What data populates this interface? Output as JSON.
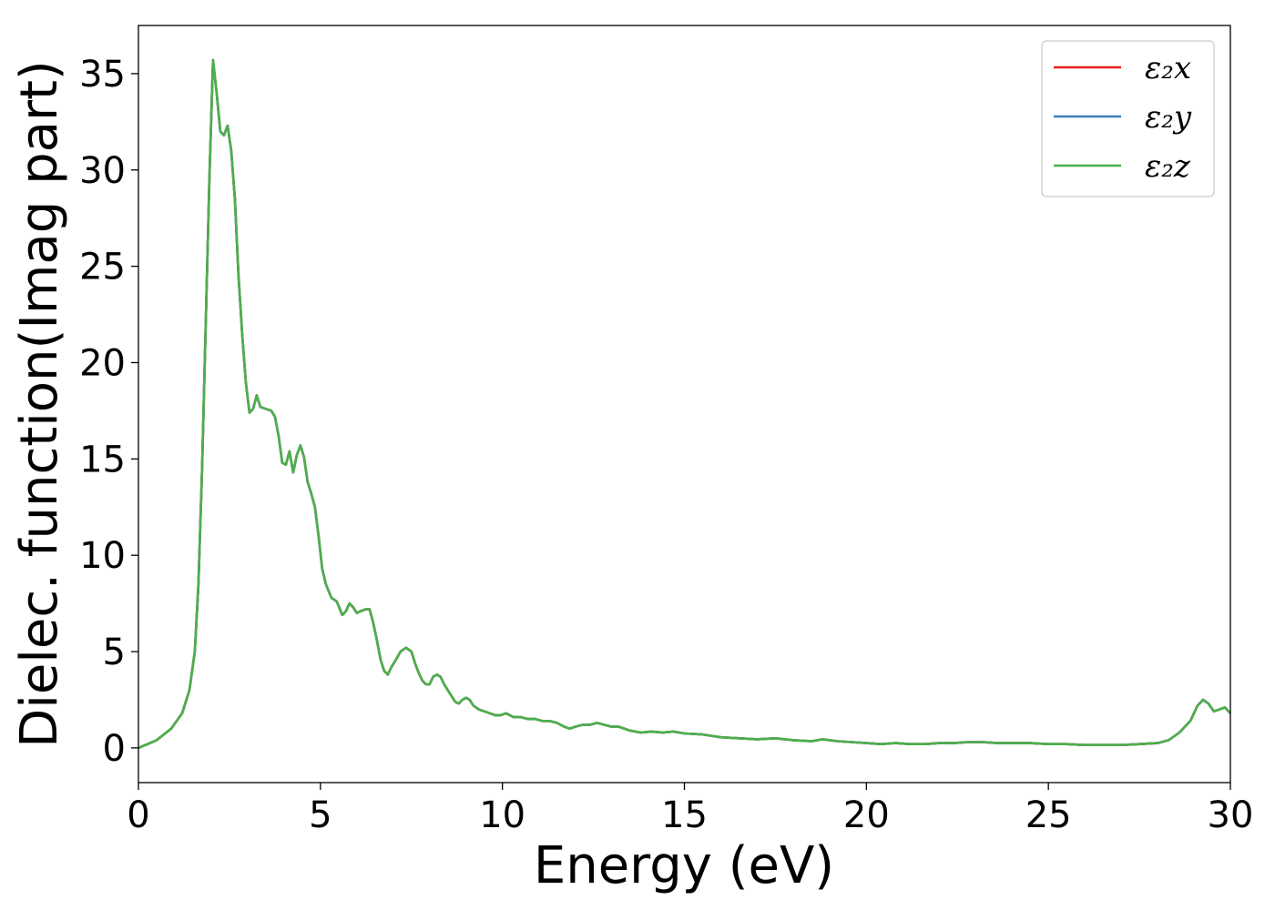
{
  "chart_data": {
    "type": "line",
    "xlabel": "Energy (eV)",
    "ylabel": "Dielec. function(Imag part)",
    "xlim": [
      0,
      30
    ],
    "ylim": [
      -1.8,
      37.5
    ],
    "xticks": [
      0,
      5,
      10,
      15,
      20,
      25,
      30
    ],
    "yticks": [
      0,
      5,
      10,
      15,
      20,
      25,
      30,
      35
    ],
    "legend_position": "top-right",
    "grid": false,
    "series": [
      {
        "name": "ε₂x",
        "color": "#e41a1c",
        "x": [
          0,
          0.5,
          0.9,
          1.2,
          1.4,
          1.55,
          1.65,
          1.75,
          1.85,
          1.95,
          2.05,
          2.15,
          2.25,
          2.35,
          2.45,
          2.55,
          2.65,
          2.75,
          2.85,
          2.95,
          3.05,
          3.15,
          3.25,
          3.35,
          3.5,
          3.65,
          3.75,
          3.85,
          3.95,
          4.05,
          4.15,
          4.25,
          4.35,
          4.45,
          4.55,
          4.65,
          4.75,
          4.85,
          4.95,
          5.05,
          5.15,
          5.3,
          5.45,
          5.6,
          5.7,
          5.8,
          5.9,
          6.0,
          6.1,
          6.25,
          6.35,
          6.45,
          6.55,
          6.65,
          6.75,
          6.85,
          6.95,
          7.05,
          7.2,
          7.35,
          7.5,
          7.6,
          7.7,
          7.8,
          7.9,
          8.0,
          8.1,
          8.2,
          8.3,
          8.4,
          8.5,
          8.6,
          8.7,
          8.8,
          8.9,
          9.0,
          9.1,
          9.2,
          9.35,
          9.5,
          9.65,
          9.8,
          9.95,
          10.1,
          10.3,
          10.5,
          10.7,
          10.9,
          11.1,
          11.3,
          11.5,
          11.7,
          11.85,
          12.0,
          12.2,
          12.4,
          12.6,
          12.8,
          13.0,
          13.2,
          13.5,
          13.8,
          14.1,
          14.4,
          14.7,
          15.0,
          15.5,
          16.0,
          16.5,
          17.0,
          17.5,
          18.0,
          18.5,
          18.8,
          19.2,
          19.6,
          20.0,
          20.4,
          20.8,
          21.2,
          21.6,
          22.0,
          22.4,
          22.8,
          23.2,
          23.6,
          24.0,
          24.5,
          25.0,
          25.5,
          26.0,
          26.5,
          27.0,
          27.5,
          28.0,
          28.3,
          28.6,
          28.9,
          29.1,
          29.25,
          29.4,
          29.55,
          29.7,
          29.85,
          30.0
        ],
        "values": [
          0,
          0.4,
          1.0,
          1.8,
          3.0,
          5.0,
          8.5,
          14.5,
          22.0,
          29.5,
          35.7,
          34.0,
          32.0,
          31.8,
          32.3,
          31.0,
          28.5,
          24.5,
          21.5,
          19.0,
          17.4,
          17.6,
          18.3,
          17.7,
          17.6,
          17.5,
          17.2,
          16.2,
          14.8,
          14.7,
          15.4,
          14.3,
          15.2,
          15.7,
          15.1,
          13.8,
          13.2,
          12.5,
          11.0,
          9.3,
          8.5,
          7.8,
          7.6,
          6.9,
          7.1,
          7.5,
          7.3,
          7.0,
          7.1,
          7.2,
          7.2,
          6.5,
          5.6,
          4.6,
          4.0,
          3.8,
          4.2,
          4.5,
          5.0,
          5.2,
          5.0,
          4.4,
          3.9,
          3.5,
          3.3,
          3.3,
          3.7,
          3.8,
          3.7,
          3.3,
          3.0,
          2.7,
          2.4,
          2.3,
          2.5,
          2.6,
          2.5,
          2.2,
          2.0,
          1.9,
          1.8,
          1.7,
          1.7,
          1.8,
          1.6,
          1.6,
          1.5,
          1.5,
          1.4,
          1.4,
          1.3,
          1.1,
          1.0,
          1.1,
          1.2,
          1.2,
          1.3,
          1.2,
          1.1,
          1.1,
          0.9,
          0.8,
          0.85,
          0.8,
          0.85,
          0.75,
          0.7,
          0.55,
          0.5,
          0.45,
          0.5,
          0.4,
          0.35,
          0.45,
          0.35,
          0.3,
          0.25,
          0.2,
          0.25,
          0.2,
          0.2,
          0.25,
          0.25,
          0.3,
          0.3,
          0.25,
          0.25,
          0.25,
          0.2,
          0.2,
          0.15,
          0.15,
          0.15,
          0.2,
          0.25,
          0.4,
          0.8,
          1.4,
          2.2,
          2.5,
          2.3,
          1.9,
          2.0,
          2.1,
          1.8
        ]
      },
      {
        "name": "ε₂y",
        "color": "#377eb8",
        "x": [
          0,
          0.5,
          0.9,
          1.2,
          1.4,
          1.55,
          1.65,
          1.75,
          1.85,
          1.95,
          2.05,
          2.15,
          2.25,
          2.35,
          2.45,
          2.55,
          2.65,
          2.75,
          2.85,
          2.95,
          3.05,
          3.15,
          3.25,
          3.35,
          3.5,
          3.65,
          3.75,
          3.85,
          3.95,
          4.05,
          4.15,
          4.25,
          4.35,
          4.45,
          4.55,
          4.65,
          4.75,
          4.85,
          4.95,
          5.05,
          5.15,
          5.3,
          5.45,
          5.6,
          5.7,
          5.8,
          5.9,
          6.0,
          6.1,
          6.25,
          6.35,
          6.45,
          6.55,
          6.65,
          6.75,
          6.85,
          6.95,
          7.05,
          7.2,
          7.35,
          7.5,
          7.6,
          7.7,
          7.8,
          7.9,
          8.0,
          8.1,
          8.2,
          8.3,
          8.4,
          8.5,
          8.6,
          8.7,
          8.8,
          8.9,
          9.0,
          9.1,
          9.2,
          9.35,
          9.5,
          9.65,
          9.8,
          9.95,
          10.1,
          10.3,
          10.5,
          10.7,
          10.9,
          11.1,
          11.3,
          11.5,
          11.7,
          11.85,
          12.0,
          12.2,
          12.4,
          12.6,
          12.8,
          13.0,
          13.2,
          13.5,
          13.8,
          14.1,
          14.4,
          14.7,
          15.0,
          15.5,
          16.0,
          16.5,
          17.0,
          17.5,
          18.0,
          18.5,
          18.8,
          19.2,
          19.6,
          20.0,
          20.4,
          20.8,
          21.2,
          21.6,
          22.0,
          22.4,
          22.8,
          23.2,
          23.6,
          24.0,
          24.5,
          25.0,
          25.5,
          26.0,
          26.5,
          27.0,
          27.5,
          28.0,
          28.3,
          28.6,
          28.9,
          29.1,
          29.25,
          29.4,
          29.55,
          29.7,
          29.85,
          30.0
        ],
        "values": [
          0,
          0.4,
          1.0,
          1.8,
          3.0,
          5.0,
          8.5,
          14.5,
          22.0,
          29.5,
          35.7,
          34.0,
          32.0,
          31.8,
          32.3,
          31.0,
          28.5,
          24.5,
          21.5,
          19.0,
          17.4,
          17.6,
          18.3,
          17.7,
          17.6,
          17.5,
          17.2,
          16.2,
          14.8,
          14.7,
          15.4,
          14.3,
          15.2,
          15.7,
          15.1,
          13.8,
          13.2,
          12.5,
          11.0,
          9.3,
          8.5,
          7.8,
          7.6,
          6.9,
          7.1,
          7.5,
          7.3,
          7.0,
          7.1,
          7.2,
          7.2,
          6.5,
          5.6,
          4.6,
          4.0,
          3.8,
          4.2,
          4.5,
          5.0,
          5.2,
          5.0,
          4.4,
          3.9,
          3.5,
          3.3,
          3.3,
          3.7,
          3.8,
          3.7,
          3.3,
          3.0,
          2.7,
          2.4,
          2.3,
          2.5,
          2.6,
          2.5,
          2.2,
          2.0,
          1.9,
          1.8,
          1.7,
          1.7,
          1.8,
          1.6,
          1.6,
          1.5,
          1.5,
          1.4,
          1.4,
          1.3,
          1.1,
          1.0,
          1.1,
          1.2,
          1.2,
          1.3,
          1.2,
          1.1,
          1.1,
          0.9,
          0.8,
          0.85,
          0.8,
          0.85,
          0.75,
          0.7,
          0.55,
          0.5,
          0.45,
          0.5,
          0.4,
          0.35,
          0.45,
          0.35,
          0.3,
          0.25,
          0.2,
          0.25,
          0.2,
          0.2,
          0.25,
          0.25,
          0.3,
          0.3,
          0.25,
          0.25,
          0.25,
          0.2,
          0.2,
          0.15,
          0.15,
          0.15,
          0.2,
          0.25,
          0.4,
          0.8,
          1.4,
          2.2,
          2.5,
          2.3,
          1.9,
          2.0,
          2.1,
          1.8
        ]
      },
      {
        "name": "ε₂z",
        "color": "#4daf4a",
        "x": [
          0,
          0.5,
          0.9,
          1.2,
          1.4,
          1.55,
          1.65,
          1.75,
          1.85,
          1.95,
          2.05,
          2.15,
          2.25,
          2.35,
          2.45,
          2.55,
          2.65,
          2.75,
          2.85,
          2.95,
          3.05,
          3.15,
          3.25,
          3.35,
          3.5,
          3.65,
          3.75,
          3.85,
          3.95,
          4.05,
          4.15,
          4.25,
          4.35,
          4.45,
          4.55,
          4.65,
          4.75,
          4.85,
          4.95,
          5.05,
          5.15,
          5.3,
          5.45,
          5.6,
          5.7,
          5.8,
          5.9,
          6.0,
          6.1,
          6.25,
          6.35,
          6.45,
          6.55,
          6.65,
          6.75,
          6.85,
          6.95,
          7.05,
          7.2,
          7.35,
          7.5,
          7.6,
          7.7,
          7.8,
          7.9,
          8.0,
          8.1,
          8.2,
          8.3,
          8.4,
          8.5,
          8.6,
          8.7,
          8.8,
          8.9,
          9.0,
          9.1,
          9.2,
          9.35,
          9.5,
          9.65,
          9.8,
          9.95,
          10.1,
          10.3,
          10.5,
          10.7,
          10.9,
          11.1,
          11.3,
          11.5,
          11.7,
          11.85,
          12.0,
          12.2,
          12.4,
          12.6,
          12.8,
          13.0,
          13.2,
          13.5,
          13.8,
          14.1,
          14.4,
          14.7,
          15.0,
          15.5,
          16.0,
          16.5,
          17.0,
          17.5,
          18.0,
          18.5,
          18.8,
          19.2,
          19.6,
          20.0,
          20.4,
          20.8,
          21.2,
          21.6,
          22.0,
          22.4,
          22.8,
          23.2,
          23.6,
          24.0,
          24.5,
          25.0,
          25.5,
          26.0,
          26.5,
          27.0,
          27.5,
          28.0,
          28.3,
          28.6,
          28.9,
          29.1,
          29.25,
          29.4,
          29.55,
          29.7,
          29.85,
          30.0
        ],
        "values": [
          0,
          0.4,
          1.0,
          1.8,
          3.0,
          5.0,
          8.5,
          14.5,
          22.0,
          29.5,
          35.7,
          34.0,
          32.0,
          31.8,
          32.3,
          31.0,
          28.5,
          24.5,
          21.5,
          19.0,
          17.4,
          17.6,
          18.3,
          17.7,
          17.6,
          17.5,
          17.2,
          16.2,
          14.8,
          14.7,
          15.4,
          14.3,
          15.2,
          15.7,
          15.1,
          13.8,
          13.2,
          12.5,
          11.0,
          9.3,
          8.5,
          7.8,
          7.6,
          6.9,
          7.1,
          7.5,
          7.3,
          7.0,
          7.1,
          7.2,
          7.2,
          6.5,
          5.6,
          4.6,
          4.0,
          3.8,
          4.2,
          4.5,
          5.0,
          5.2,
          5.0,
          4.4,
          3.9,
          3.5,
          3.3,
          3.3,
          3.7,
          3.8,
          3.7,
          3.3,
          3.0,
          2.7,
          2.4,
          2.3,
          2.5,
          2.6,
          2.5,
          2.2,
          2.0,
          1.9,
          1.8,
          1.7,
          1.7,
          1.8,
          1.6,
          1.6,
          1.5,
          1.5,
          1.4,
          1.4,
          1.3,
          1.1,
          1.0,
          1.1,
          1.2,
          1.2,
          1.3,
          1.2,
          1.1,
          1.1,
          0.9,
          0.8,
          0.85,
          0.8,
          0.85,
          0.75,
          0.7,
          0.55,
          0.5,
          0.45,
          0.5,
          0.4,
          0.35,
          0.45,
          0.35,
          0.3,
          0.25,
          0.2,
          0.25,
          0.2,
          0.2,
          0.25,
          0.25,
          0.3,
          0.3,
          0.25,
          0.25,
          0.25,
          0.2,
          0.2,
          0.15,
          0.15,
          0.15,
          0.2,
          0.25,
          0.4,
          0.8,
          1.4,
          2.2,
          2.5,
          2.3,
          1.9,
          2.0,
          2.1,
          1.8
        ]
      }
    ]
  }
}
